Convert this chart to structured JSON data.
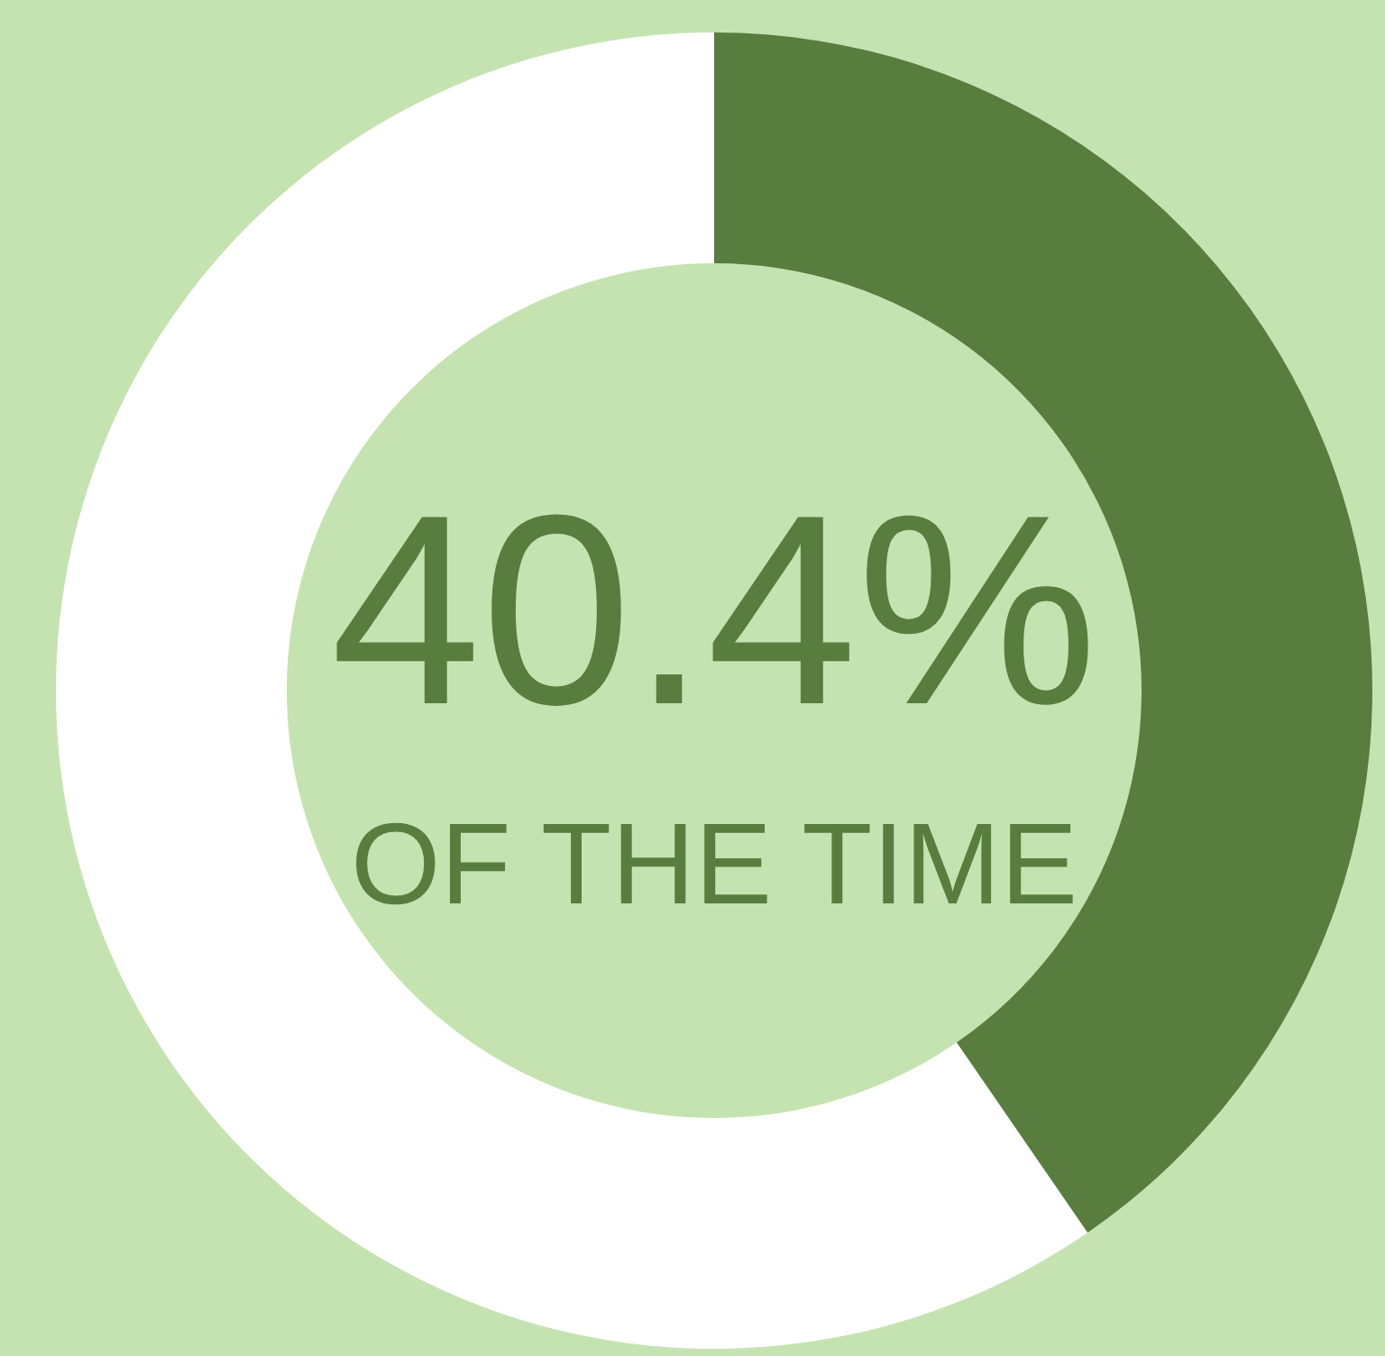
{
  "chart_data": {
    "type": "donut",
    "categories": [
      null,
      null
    ],
    "values": [
      40.4,
      59.6
    ],
    "colors": [
      "#587d3e",
      "#ffffff"
    ],
    "annotations": [
      "40.4%",
      "OF THE TIME"
    ]
  }
}
